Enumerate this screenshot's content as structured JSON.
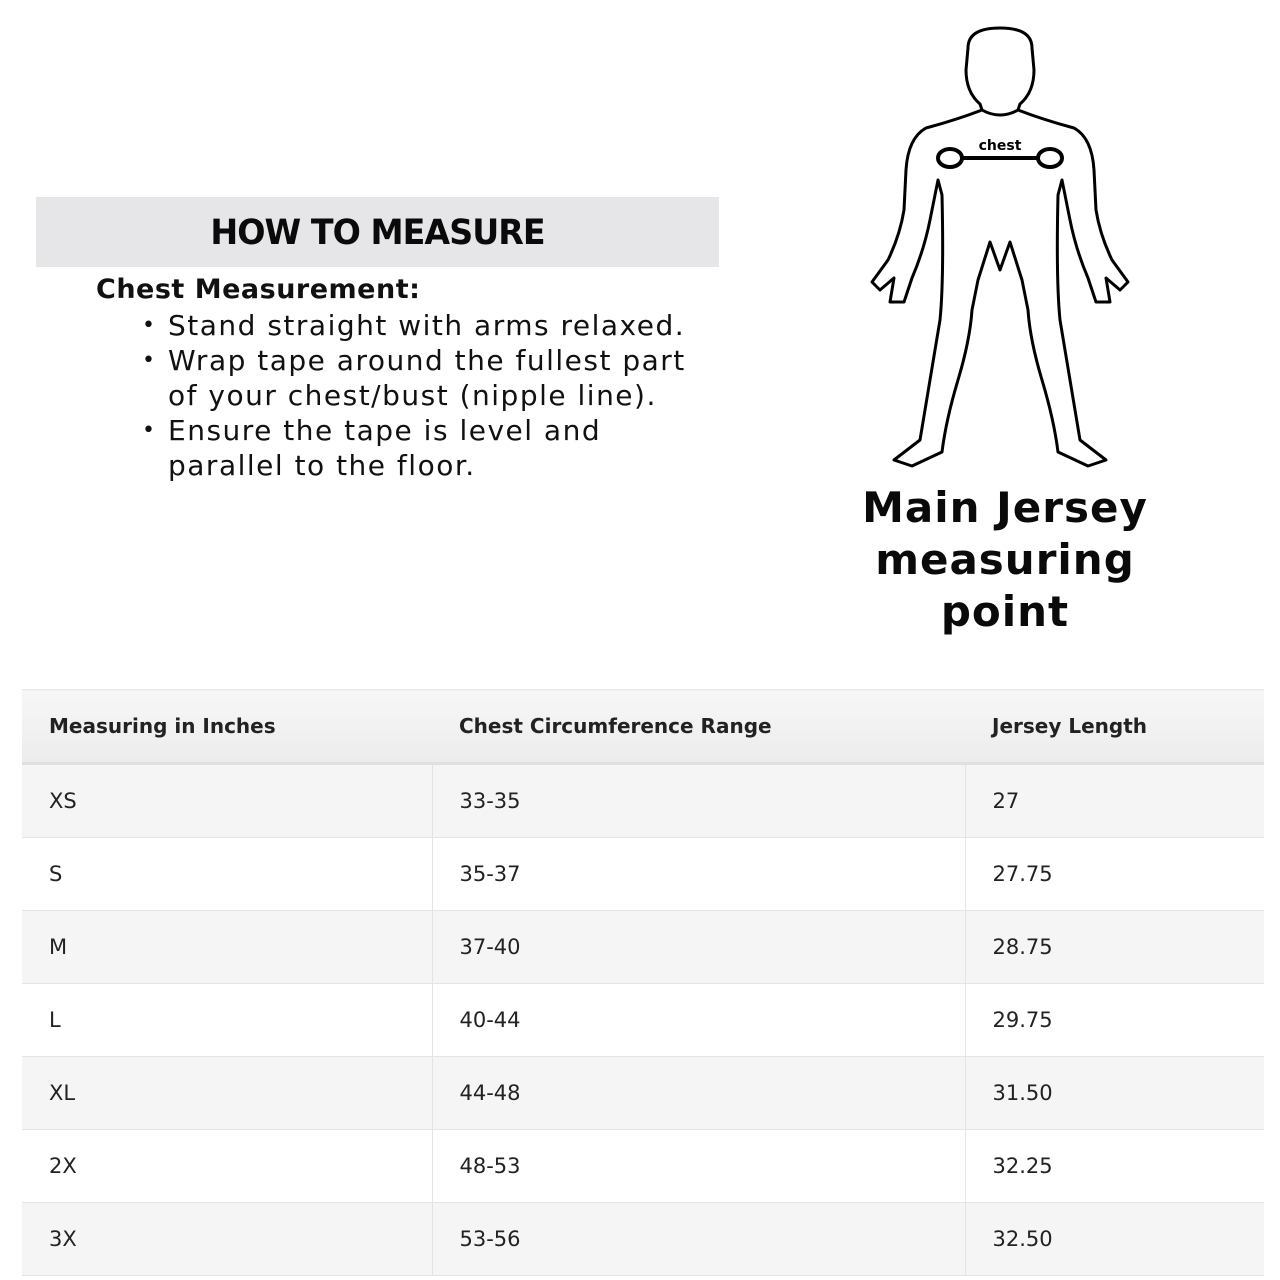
{
  "how_to": {
    "title": "HOW TO MEASURE",
    "heading": "Chest Measurement:",
    "bullets": [
      "Stand straight with arms relaxed.",
      "Wrap tape around the fullest part of your chest/bust (nipple line).",
      "Ensure the tape is level and parallel to the floor."
    ]
  },
  "figure": {
    "chest_label": "chest",
    "caption_lines": [
      "Main Jersey",
      "measuring",
      "point"
    ]
  },
  "table": {
    "headers": [
      "Measuring in Inches",
      "Chest Circumference Range",
      "Jersey Length"
    ],
    "rows": [
      [
        "XS",
        "33-35",
        "27"
      ],
      [
        "S",
        "35-37",
        "27.75"
      ],
      [
        "M",
        "37-40",
        "28.75"
      ],
      [
        "L",
        "40-44",
        "29.75"
      ],
      [
        "XL",
        "44-48",
        "31.50"
      ],
      [
        "2X",
        "48-53",
        "32.25"
      ],
      [
        "3X",
        "53-56",
        "32.50"
      ]
    ]
  }
}
